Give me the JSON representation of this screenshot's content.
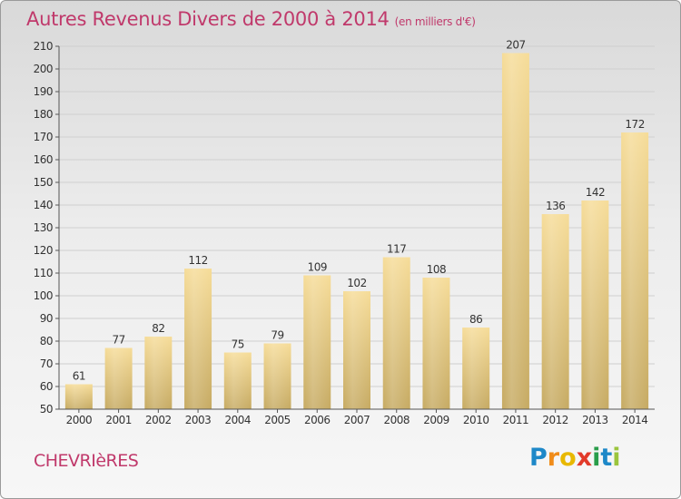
{
  "title": "Autres Revenus Divers de 2000 à 2014",
  "subtitle": "(en milliers d'€)",
  "commune": "CHEVRIèRES",
  "logo": {
    "letters": [
      {
        "ch": "P",
        "color": "#1e88c8"
      },
      {
        "ch": "r",
        "color": "#f08c1a"
      },
      {
        "ch": "o",
        "color": "#e8b800"
      },
      {
        "ch": "x",
        "color": "#e23a2a"
      },
      {
        "ch": "i",
        "color": "#2a9d4a"
      },
      {
        "ch": "t",
        "color": "#1e88c8"
      },
      {
        "ch": "i",
        "color": "#9bc53d"
      }
    ]
  },
  "chart_data": {
    "type": "bar",
    "categories": [
      "2000",
      "2001",
      "2002",
      "2003",
      "2004",
      "2005",
      "2006",
      "2007",
      "2008",
      "2009",
      "2010",
      "2011",
      "2012",
      "2013",
      "2014"
    ],
    "values": [
      61,
      77,
      82,
      112,
      75,
      79,
      109,
      102,
      117,
      108,
      86,
      207,
      136,
      142,
      172
    ],
    "ylim": [
      50,
      210
    ],
    "yticks": [
      50,
      60,
      70,
      80,
      90,
      100,
      110,
      120,
      130,
      140,
      150,
      160,
      170,
      180,
      190,
      200,
      210
    ],
    "grid": true,
    "xlabel": "",
    "ylabel": "",
    "colors": {
      "bar_top": "#f6dc98",
      "bar_bottom": "#c6aa62",
      "grid": "#cfcfcf",
      "axis": "#555555",
      "label": "#333333"
    }
  }
}
